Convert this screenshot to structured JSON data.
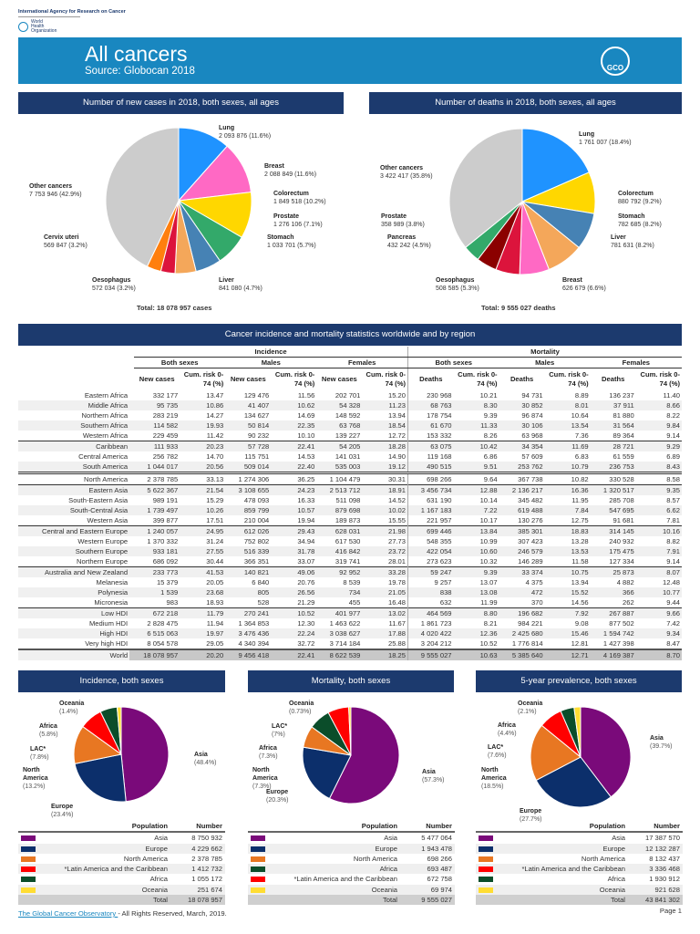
{
  "header": {
    "org_name": "International Agency for Research on Cancer",
    "who_name": "World Health Organization",
    "title": "All cancers",
    "source": "Source: Globocan 2018",
    "logo_text": "GCO"
  },
  "sections": {
    "new_cases": "Number of new cases in 2018, both sexes, all ages",
    "deaths": "Number of deaths in 2018, both sexes, all ages",
    "table": "Cancer incidence and mortality statistics worldwide and by region",
    "incidence_pie": "Incidence, both sexes",
    "mortality_pie": "Mortality, both sexes",
    "prevalence_pie": "5-year prevalence, both sexes"
  },
  "chart_data": [
    {
      "type": "pie",
      "total_label": "Total: 18 078 957 cases",
      "slices": [
        {
          "name": "Lung",
          "value": 2093876,
          "pct": 11.6,
          "color": "#1f93ff"
        },
        {
          "name": "Breast",
          "value": 2088849,
          "pct": 11.6,
          "color": "#ff69c4"
        },
        {
          "name": "Colorectum",
          "value": 1849518,
          "pct": 10.2,
          "color": "#ffd700"
        },
        {
          "name": "Prostate",
          "value": 1276106,
          "pct": 7.1,
          "color": "#33a96a"
        },
        {
          "name": "Stomach",
          "value": 1033701,
          "pct": 5.7,
          "color": "#4682b4"
        },
        {
          "name": "Liver",
          "value": 841080,
          "pct": 4.7,
          "color": "#f4a75a"
        },
        {
          "name": "Oesophagus",
          "value": 572034,
          "pct": 3.2,
          "color": "#dc143c"
        },
        {
          "name": "Cervix uteri",
          "value": 569847,
          "pct": 3.2,
          "color": "#ff7f0e"
        },
        {
          "name": "Other cancers",
          "value": 7753946,
          "pct": 42.9,
          "color": "#cccccc"
        }
      ]
    },
    {
      "type": "pie",
      "total_label": "Total: 9 555 027 deaths",
      "slices": [
        {
          "name": "Lung",
          "value": 1761007,
          "pct": 18.4,
          "color": "#1f93ff"
        },
        {
          "name": "Colorectum",
          "value": 880792,
          "pct": 9.2,
          "color": "#ffd700"
        },
        {
          "name": "Stomach",
          "value": 782685,
          "pct": 8.2,
          "color": "#4682b4"
        },
        {
          "name": "Liver",
          "value": 781631,
          "pct": 8.2,
          "color": "#f4a75a"
        },
        {
          "name": "Breast",
          "value": 626679,
          "pct": 6.6,
          "color": "#ff69c4"
        },
        {
          "name": "Oesophagus",
          "value": 508585,
          "pct": 5.3,
          "color": "#dc143c"
        },
        {
          "name": "Pancreas",
          "value": 432242,
          "pct": 4.5,
          "color": "#8b0000"
        },
        {
          "name": "Prostate",
          "value": 358989,
          "pct": 3.8,
          "color": "#33a96a"
        },
        {
          "name": "Other cancers",
          "value": 3422417,
          "pct": 35.8,
          "color": "#cccccc"
        }
      ]
    },
    {
      "type": "pie",
      "slices": [
        {
          "name": "Asia",
          "value": 8750932,
          "pct": 48.4,
          "color": "#7a0a7a"
        },
        {
          "name": "Europe",
          "value": 4229662,
          "pct": 23.4,
          "color": "#0c2f6b"
        },
        {
          "name": "North America",
          "value": 2378785,
          "pct": 13.2,
          "color": "#e87722"
        },
        {
          "name": "LAC*",
          "value": 1412732,
          "pct": 7.8,
          "color": "#ff0000"
        },
        {
          "name": "Africa",
          "value": 1055172,
          "pct": 5.8,
          "color": "#0b4d2a"
        },
        {
          "name": "Oceania",
          "value": 251674,
          "pct": 1.4,
          "color": "#ffdd33"
        }
      ]
    },
    {
      "type": "pie",
      "slices": [
        {
          "name": "Asia",
          "value": 5477064,
          "pct": 57.3,
          "color": "#7a0a7a"
        },
        {
          "name": "Europe",
          "value": 1943478,
          "pct": 20.3,
          "color": "#0c2f6b"
        },
        {
          "name": "North America",
          "value": 698266,
          "pct": 7.3,
          "color": "#e87722"
        },
        {
          "name": "Africa",
          "value": 693487,
          "pct": 7.3,
          "color": "#0b4d2a"
        },
        {
          "name": "LAC*",
          "value": 672758,
          "pct": 7,
          "color": "#ff0000"
        },
        {
          "name": "Oceania",
          "value": 69974,
          "pct": 0.73,
          "color": "#ffdd33"
        }
      ]
    },
    {
      "type": "pie",
      "slices": [
        {
          "name": "Asia",
          "value": 17387570,
          "pct": 39.7,
          "color": "#7a0a7a"
        },
        {
          "name": "Europe",
          "value": 12132287,
          "pct": 27.7,
          "color": "#0c2f6b"
        },
        {
          "name": "North America",
          "value": 8132437,
          "pct": 18.5,
          "color": "#e87722"
        },
        {
          "name": "LAC*",
          "value": 3336468,
          "pct": 7.6,
          "color": "#ff0000"
        },
        {
          "name": "Africa",
          "value": 1930912,
          "pct": 4.4,
          "color": "#0b4d2a"
        },
        {
          "name": "Oceania",
          "value": 921628,
          "pct": 2.1,
          "color": "#ffdd33"
        }
      ]
    }
  ],
  "table": {
    "groups": [
      "Incidence",
      "Mortality"
    ],
    "subgroups": [
      "Both sexes",
      "Males",
      "Females",
      "Both sexes",
      "Males",
      "Females"
    ],
    "columns": [
      "New cases",
      "Cum. risk 0-74 (%)",
      "New cases",
      "Cum. risk 0-74 (%)",
      "New cases",
      "Cum. risk 0-74 (%)",
      "Deaths",
      "Cum. risk 0-74 (%)",
      "Deaths",
      "Cum. risk 0-74 (%)",
      "Deaths",
      "Cum. risk 0-74 (%)"
    ],
    "rows": [
      {
        "region": "Eastern Africa",
        "values": [
          "332 177",
          "13.47",
          "129 476",
          "11.56",
          "202 701",
          "15.20",
          "230 968",
          "10.21",
          "94 731",
          "8.89",
          "136 237",
          "11.40"
        ]
      },
      {
        "region": "Middle Africa",
        "values": [
          "95 735",
          "10.86",
          "41 407",
          "10.62",
          "54 328",
          "11.23",
          "68 763",
          "8.30",
          "30 852",
          "8.01",
          "37 911",
          "8.66"
        ]
      },
      {
        "region": "Northern Africa",
        "values": [
          "283 219",
          "14.27",
          "134 627",
          "14.69",
          "148 592",
          "13.94",
          "178 754",
          "9.39",
          "96 874",
          "10.64",
          "81 880",
          "8.22"
        ]
      },
      {
        "region": "Southern Africa",
        "values": [
          "114 582",
          "19.93",
          "50 814",
          "22.35",
          "63 768",
          "18.54",
          "61 670",
          "11.33",
          "30 106",
          "13.54",
          "31 564",
          "9.84"
        ]
      },
      {
        "region": "Western Africa",
        "values": [
          "229 459",
          "11.42",
          "90 232",
          "10.10",
          "139 227",
          "12.72",
          "153 332",
          "8.26",
          "63 968",
          "7.36",
          "89 364",
          "9.14"
        ]
      },
      {
        "region": "Caribbean",
        "values": [
          "111 933",
          "20.23",
          "57 728",
          "22.41",
          "54 205",
          "18.28",
          "63 075",
          "10.42",
          "34 354",
          "11.69",
          "28 721",
          "9.29"
        ]
      },
      {
        "region": "Central America",
        "values": [
          "256 782",
          "14.70",
          "115 751",
          "14.53",
          "141 031",
          "14.90",
          "119 168",
          "6.86",
          "57 609",
          "6.83",
          "61 559",
          "6.89"
        ]
      },
      {
        "region": "South America",
        "values": [
          "1 044 017",
          "20.56",
          "509 014",
          "22.40",
          "535 003",
          "19.12",
          "490 515",
          "9.51",
          "253 762",
          "10.79",
          "236 753",
          "8.43"
        ]
      },
      {
        "region": "North America",
        "values": [
          "2 378 785",
          "33.13",
          "1 274 306",
          "36.25",
          "1 104 479",
          "30.31",
          "698 266",
          "9.64",
          "367 738",
          "10.82",
          "330 528",
          "8.58"
        ]
      },
      {
        "region": "Eastern Asia",
        "values": [
          "5 622 367",
          "21.54",
          "3 108 655",
          "24.23",
          "2 513 712",
          "18.91",
          "3 456 734",
          "12.88",
          "2 136 217",
          "16.36",
          "1 320 517",
          "9.35"
        ]
      },
      {
        "region": "South-Eastern Asia",
        "values": [
          "989 191",
          "15.29",
          "478 093",
          "16.33",
          "511 098",
          "14.52",
          "631 190",
          "10.14",
          "345 482",
          "11.95",
          "285 708",
          "8.57"
        ]
      },
      {
        "region": "South-Central Asia",
        "values": [
          "1 739 497",
          "10.26",
          "859 799",
          "10.57",
          "879 698",
          "10.02",
          "1 167 183",
          "7.22",
          "619 488",
          "7.84",
          "547 695",
          "6.62"
        ]
      },
      {
        "region": "Western Asia",
        "values": [
          "399 877",
          "17.51",
          "210 004",
          "19.94",
          "189 873",
          "15.55",
          "221 957",
          "10.17",
          "130 276",
          "12.75",
          "91 681",
          "7.81"
        ]
      },
      {
        "region": "Central and Eastern Europe",
        "values": [
          "1 240 057",
          "24.95",
          "612 026",
          "29.43",
          "628 031",
          "21.98",
          "699 446",
          "13.84",
          "385 301",
          "18.83",
          "314 145",
          "10.16"
        ]
      },
      {
        "region": "Western Europe",
        "values": [
          "1 370 332",
          "31.24",
          "752 802",
          "34.94",
          "617 530",
          "27.73",
          "548 355",
          "10.99",
          "307 423",
          "13.28",
          "240 932",
          "8.82"
        ]
      },
      {
        "region": "Southern Europe",
        "values": [
          "933 181",
          "27.55",
          "516 339",
          "31.78",
          "416 842",
          "23.72",
          "422 054",
          "10.60",
          "246 579",
          "13.53",
          "175 475",
          "7.91"
        ]
      },
      {
        "region": "Northern Europe",
        "values": [
          "686 092",
          "30.44",
          "366 351",
          "33.07",
          "319 741",
          "28.01",
          "273 623",
          "10.32",
          "146 289",
          "11.58",
          "127 334",
          "9.14"
        ]
      },
      {
        "region": "Australia and New Zealand",
        "values": [
          "233 773",
          "41.53",
          "140 821",
          "49.06",
          "92 952",
          "33.28",
          "59 247",
          "9.39",
          "33 374",
          "10.75",
          "25 873",
          "8.07"
        ]
      },
      {
        "region": "Melanesia",
        "values": [
          "15 379",
          "20.05",
          "6 840",
          "20.76",
          "8 539",
          "19.78",
          "9 257",
          "13.07",
          "4 375",
          "13.94",
          "4 882",
          "12.48"
        ]
      },
      {
        "region": "Polynesia",
        "values": [
          "1 539",
          "23.68",
          "805",
          "26.56",
          "734",
          "21.05",
          "838",
          "13.08",
          "472",
          "15.52",
          "366",
          "10.77"
        ]
      },
      {
        "region": "Micronesia",
        "values": [
          "983",
          "18.93",
          "528",
          "21.29",
          "455",
          "16.48",
          "632",
          "11.99",
          "370",
          "14.56",
          "262",
          "9.44"
        ]
      },
      {
        "region": "Low HDI",
        "values": [
          "672 218",
          "11.79",
          "270 241",
          "10.52",
          "401 977",
          "13.02",
          "464 569",
          "8.80",
          "196 682",
          "7.92",
          "267 887",
          "9.66"
        ]
      },
      {
        "region": "Medium HDI",
        "values": [
          "2 828 475",
          "11.94",
          "1 364 853",
          "12.30",
          "1 463 622",
          "11.67",
          "1 861 723",
          "8.21",
          "984 221",
          "9.08",
          "877 502",
          "7.42"
        ]
      },
      {
        "region": "High HDI",
        "values": [
          "6 515 063",
          "19.97",
          "3 476 436",
          "22.24",
          "3 038 627",
          "17.88",
          "4 020 422",
          "12.36",
          "2 425 680",
          "15.46",
          "1 594 742",
          "9.34"
        ]
      },
      {
        "region": "Very high HDI",
        "values": [
          "8 054 578",
          "29.05",
          "4 340 394",
          "32.72",
          "3 714 184",
          "25.88",
          "3 204 212",
          "10.52",
          "1 776 814",
          "12.81",
          "1 427 398",
          "8.47"
        ]
      },
      {
        "region": "World",
        "values": [
          "18 078 957",
          "20.20",
          "9 456 418",
          "22.41",
          "8 622 539",
          "18.25",
          "9 555 027",
          "10.63",
          "5 385 640",
          "12.71",
          "4 169 387",
          "8.70"
        ]
      }
    ]
  },
  "legends": [
    {
      "headers": [
        "Population",
        "Number"
      ],
      "rows": [
        [
          "Asia",
          "8 750 932",
          "#7a0a7a"
        ],
        [
          "Europe",
          "4 229 662",
          "#0c2f6b"
        ],
        [
          "North America",
          "2 378 785",
          "#e87722"
        ],
        [
          "*Latin America and the Caribbean",
          "1 412 732",
          "#ff0000"
        ],
        [
          "Africa",
          "1 055 172",
          "#0b4d2a"
        ],
        [
          "Oceania",
          "251 674",
          "#ffdd33"
        ]
      ],
      "total": [
        "Total",
        "18 078 957"
      ]
    },
    {
      "headers": [
        "Population",
        "Number"
      ],
      "rows": [
        [
          "Asia",
          "5 477 064",
          "#7a0a7a"
        ],
        [
          "Europe",
          "1 943 478",
          "#0c2f6b"
        ],
        [
          "North America",
          "698 266",
          "#e87722"
        ],
        [
          "Africa",
          "693 487",
          "#0b4d2a"
        ],
        [
          "*Latin America and the Caribbean",
          "672 758",
          "#ff0000"
        ],
        [
          "Oceania",
          "69 974",
          "#ffdd33"
        ]
      ],
      "total": [
        "Total",
        "9 555 027"
      ]
    },
    {
      "headers": [
        "Population",
        "Number"
      ],
      "rows": [
        [
          "Asia",
          "17 387 570",
          "#7a0a7a"
        ],
        [
          "Europe",
          "12 132 287",
          "#0c2f6b"
        ],
        [
          "North America",
          "8 132 437",
          "#e87722"
        ],
        [
          "*Latin America and the Caribbean",
          "3 336 468",
          "#ff0000"
        ],
        [
          "Africa",
          "1 930 912",
          "#0b4d2a"
        ],
        [
          "Oceania",
          "921 628",
          "#ffdd33"
        ]
      ],
      "total": [
        "Total",
        "43 841 302"
      ]
    }
  ],
  "footer": {
    "link": "The Global Cancer Observatory ",
    "text": "- All Rights Reserved, March, 2019.",
    "page": "Page 1"
  }
}
